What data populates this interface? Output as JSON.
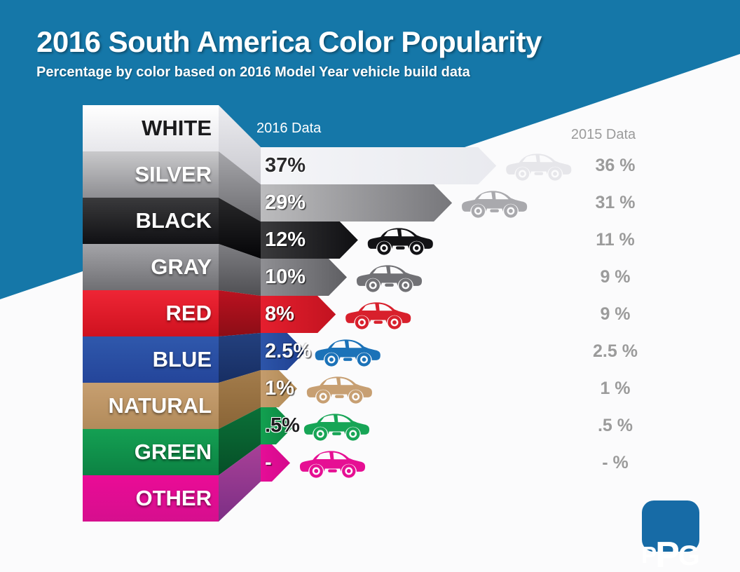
{
  "header": {
    "title": "2016 South America Color Popularity",
    "subtitle": "Percentage by color based on 2016 Model Year vehicle build data",
    "banner_color": "#1577a8"
  },
  "columns": {
    "left_header": "2016 Data",
    "right_header": "2015 Data",
    "right_header_color": "#9b9b9b"
  },
  "logo": {
    "name": "PPG",
    "letters": [
      "P",
      "P",
      "G"
    ],
    "color": "#176ba6"
  },
  "chart_data": {
    "type": "bar",
    "orientation": "horizontal",
    "title": "2016 South America Color Popularity",
    "subtitle": "Percentage by color based on 2016 Model Year vehicle build data",
    "categories": [
      "WHITE",
      "SILVER",
      "BLACK",
      "GRAY",
      "RED",
      "BLUE",
      "NATURAL",
      "GREEN",
      "OTHER"
    ],
    "series": [
      {
        "name": "2016 Data",
        "values": [
          37,
          29,
          12,
          10,
          8,
          2.5,
          1,
          0.5,
          null
        ]
      },
      {
        "name": "2015 Data",
        "values": [
          36,
          31,
          11,
          9,
          9,
          2.5,
          1,
          0.5,
          null
        ]
      }
    ],
    "rows": [
      {
        "label": "WHITE",
        "v2016": 37,
        "pct": "37%",
        "v2015": "36 %",
        "label_style": "dark",
        "pct_style": "light",
        "pct_color": "#2b2b2d",
        "band": [
          "#ffffff",
          "#e7e7eb"
        ],
        "fold": [
          "#ececf0",
          "#c9c9cf"
        ],
        "bar": [
          "#f4f5f8",
          "#e9eaef"
        ],
        "car": "#e6e6ea"
      },
      {
        "label": "SILVER",
        "v2016": 29,
        "pct": "29%",
        "v2015": "31 %",
        "label_style": "light",
        "pct_style": "dark",
        "pct_color": "#ffffff",
        "band": [
          "#c9c9cb",
          "#8e8e92"
        ],
        "fold": [
          "#a6a6aa",
          "#6e6e72"
        ],
        "bar": [
          "#bcbcbe",
          "#77777b"
        ],
        "car": "#a9a9ad"
      },
      {
        "label": "BLACK",
        "v2016": 12,
        "pct": "12%",
        "v2015": "11 %",
        "label_style": "light",
        "pct_style": "dark",
        "pct_color": "#ffffff",
        "band": [
          "#3a3a3c",
          "#101013"
        ],
        "fold": [
          "#28282a",
          "#050507"
        ],
        "bar": [
          "#3a3a3c",
          "#0f0f12"
        ],
        "car": "#121215"
      },
      {
        "label": "GRAY",
        "v2016": 10,
        "pct": "10%",
        "v2015": "9 %",
        "label_style": "light",
        "pct_style": "dark",
        "pct_color": "#ffffff",
        "band": [
          "#a4a4a8",
          "#6f6f73"
        ],
        "fold": [
          "#7e7e82",
          "#505054"
        ],
        "bar": [
          "#8f8f93",
          "#5f5f63"
        ],
        "car": "#717175"
      },
      {
        "label": "RED",
        "v2016": 8,
        "pct": "8%",
        "v2015": "9 %",
        "label_style": "light",
        "pct_style": "dark",
        "pct_color": "#ffffff",
        "band": [
          "#ee2535",
          "#cf121f"
        ],
        "fold": [
          "#bb1220",
          "#8c0d16"
        ],
        "bar": [
          "#e51f2e",
          "#c21320"
        ],
        "car": "#d8202c"
      },
      {
        "label": "BLUE",
        "v2016": 2.5,
        "pct": "2.5%",
        "v2015": "2.5 %",
        "label_style": "light",
        "pct_style": "dark",
        "pct_color": "#ffffff",
        "band": [
          "#2f58ac",
          "#24459a"
        ],
        "fold": [
          "#23407e",
          "#172e63"
        ],
        "bar": [
          "#2d55a9",
          "#1e3f8f"
        ],
        "car": "#1b72b8"
      },
      {
        "label": "NATURAL",
        "v2016": 1,
        "pct": "1%",
        "v2015": "1 %",
        "label_style": "light",
        "pct_style": "dark",
        "pct_color": "#ffffff",
        "band": [
          "#c79f70",
          "#b28b5b"
        ],
        "fold": [
          "#a37c4b",
          "#8a6537"
        ],
        "bar": [
          "#c49c6d",
          "#b08953"
        ],
        "car": "#c79f72"
      },
      {
        "label": "GREEN",
        "v2016": 0.5,
        "pct": ".5%",
        "v2015": ".5 %",
        "label_style": "light",
        "pct_style": "light",
        "pct_color": "#1c1c1e",
        "band": [
          "#14a053",
          "#0c8243"
        ],
        "fold": [
          "#0b7038",
          "#064f27"
        ],
        "bar": [
          "#12a050",
          "#0c8440"
        ],
        "car": "#17a556"
      },
      {
        "label": "OTHER",
        "v2016": null,
        "pct": "-",
        "v2015": "- %",
        "label_style": "light",
        "pct_style": "dark",
        "pct_color": "#ffffff",
        "band": [
          "#ea0b96",
          "#d60f8e"
        ],
        "fold": [
          "#a84097",
          "#7c2f85"
        ],
        "bar": [
          "#e60d97",
          "#d40b8c"
        ],
        "car": "#e60f93"
      }
    ],
    "value_color_2015": "#9b9b9b",
    "grid": false,
    "legend_position": "top"
  }
}
